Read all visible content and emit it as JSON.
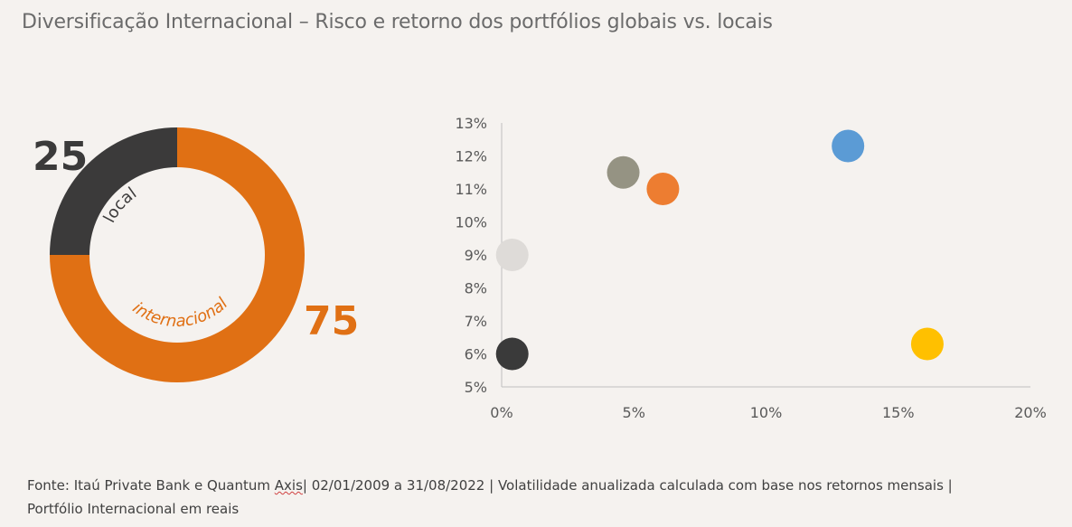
{
  "title": "Diversificação Internacional – Risco e retorno dos portfólios globais vs. locais",
  "chart_data": [
    {
      "type": "pie",
      "variant": "donut",
      "slices": [
        {
          "label": "local",
          "value": 25,
          "color": "#3b3a3a"
        },
        {
          "label": "internacional",
          "value": 75,
          "color": "#e07014"
        }
      ]
    },
    {
      "type": "scatter",
      "xlim": [
        0,
        20
      ],
      "ylim": [
        5,
        13
      ],
      "x_ticks": [
        "0%",
        "5%",
        "10%",
        "15%",
        "20%"
      ],
      "y_ticks": [
        "5%",
        "6%",
        "7%",
        "8%",
        "9%",
        "10%",
        "11%",
        "12%",
        "13%"
      ],
      "grid": false,
      "points": [
        {
          "x": 0.4,
          "y": 6.0,
          "color": "#3a3a3a"
        },
        {
          "x": 0.4,
          "y": 9.0,
          "color": "#dedbd8"
        },
        {
          "x": 4.6,
          "y": 11.5,
          "color": "#959383"
        },
        {
          "x": 6.1,
          "y": 11.0,
          "color": "#ed7d31"
        },
        {
          "x": 13.1,
          "y": 12.3,
          "color": "#5b9bd5"
        },
        {
          "x": 16.1,
          "y": 6.3,
          "color": "#ffc000"
        }
      ]
    }
  ],
  "footer": {
    "part1": "Fonte: Itaú Private Bank e Quantum ",
    "axis_word": "Axis",
    "part2": "| 02/01/2009 a 31/08/2022 | Volatilidade anualizada calculada com base nos retornos mensais | Portfólio Internacional em reais"
  }
}
